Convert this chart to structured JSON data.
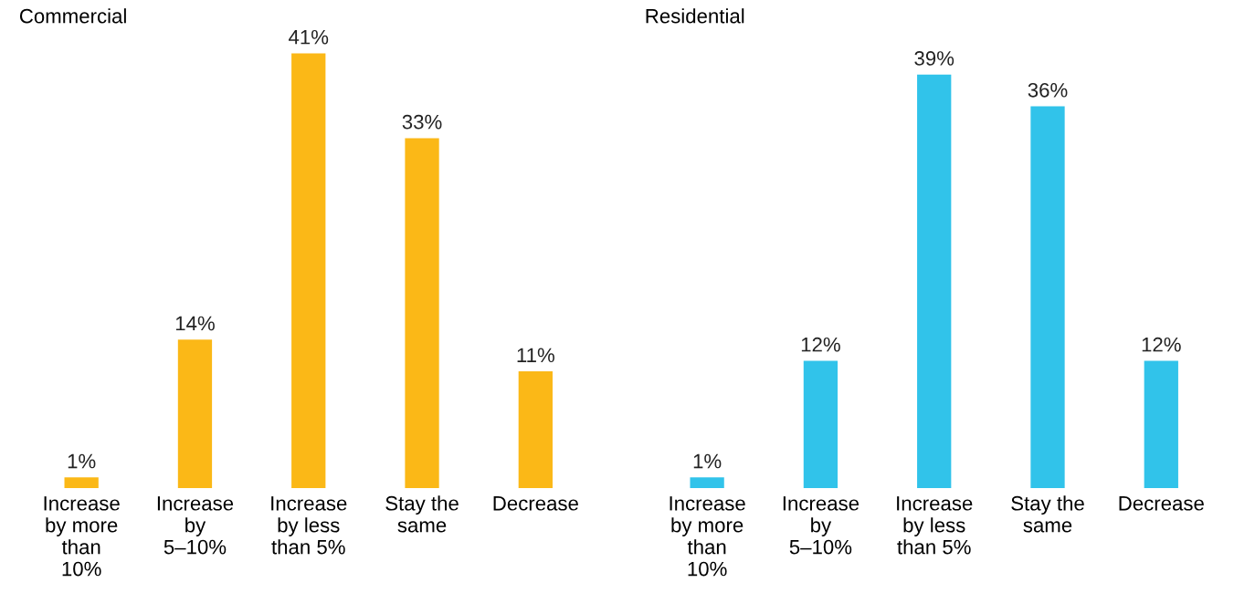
{
  "chart_data": [
    {
      "type": "bar",
      "title": "Commercial",
      "categories": [
        "Increase\nby more\nthan\n10%",
        "Increase\nby\n5–10%",
        "Increase\nby less\nthan 5%",
        "Stay the\nsame",
        "Decrease"
      ],
      "values": [
        1,
        14,
        41,
        33,
        11
      ],
      "color": "#fbb817",
      "data_labels": true,
      "value_labels": [
        "1%",
        "14%",
        "41%",
        "33%",
        "11%"
      ]
    },
    {
      "type": "bar",
      "title": "Residential",
      "categories": [
        "Increase\nby more\nthan\n10%",
        "Increase\nby\n5–10%",
        "Increase\nby less\nthan 5%",
        "Stay the\nsame",
        "Decrease"
      ],
      "values": [
        1,
        12,
        39,
        36,
        12
      ],
      "color": "#31c3ea",
      "data_labels": true,
      "value_labels": [
        "1%",
        "12%",
        "39%",
        "36%",
        "12%"
      ]
    }
  ]
}
